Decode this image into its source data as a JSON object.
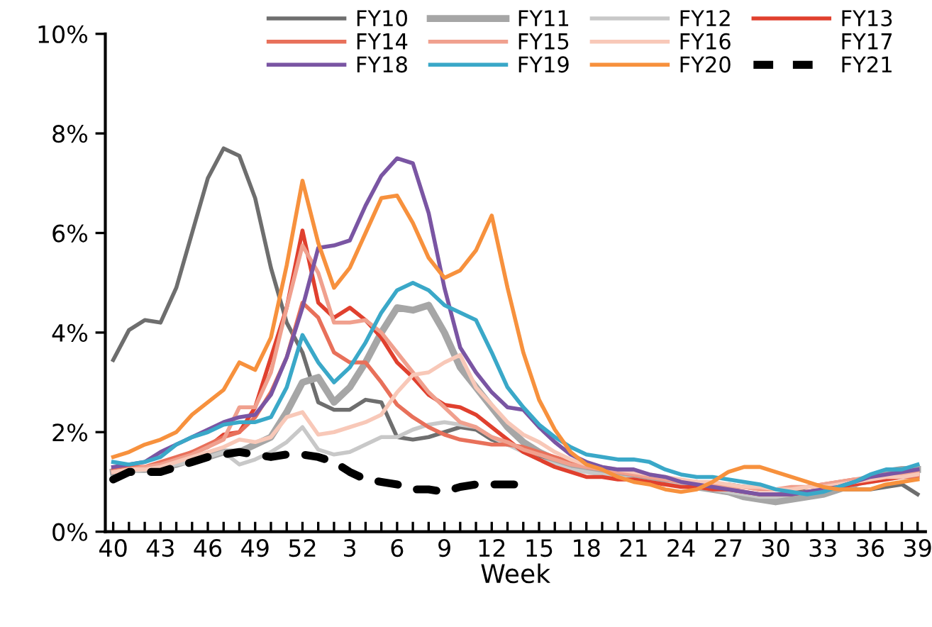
{
  "chart_data": {
    "type": "line",
    "xlabel": "Week",
    "categories": [
      "40",
      null,
      null,
      "43",
      null,
      null,
      "46",
      null,
      null,
      "49",
      null,
      null,
      "52",
      null,
      null,
      "3",
      null,
      null,
      "6",
      null,
      null,
      "9",
      null,
      null,
      "12",
      null,
      null,
      "15",
      null,
      null,
      "18",
      null,
      null,
      "21",
      null,
      null,
      "24",
      null,
      null,
      "27",
      null,
      null,
      "30",
      null,
      null,
      "33",
      null,
      null,
      "36",
      null,
      null,
      "39"
    ],
    "ylim": [
      0,
      10
    ],
    "yticks": [
      {
        "value": 0,
        "label": "0%"
      },
      {
        "value": 2,
        "label": "2%"
      },
      {
        "value": 4,
        "label": "4%"
      },
      {
        "value": 6,
        "label": "6%"
      },
      {
        "value": 8,
        "label": "8%"
      },
      {
        "value": 10,
        "label": "10%"
      }
    ],
    "grid": false,
    "legend": "top",
    "marker": "none",
    "series": [
      {
        "name": "FY10",
        "color": "#6e6e6e",
        "values": [
          3.45,
          4.05,
          4.25,
          4.2,
          4.9,
          6.0,
          7.1,
          7.7,
          7.55,
          6.7,
          5.3,
          4.2,
          3.6,
          2.6,
          2.45,
          2.45,
          2.65,
          2.6,
          1.9,
          1.85,
          1.9,
          2.0,
          2.1,
          2.05,
          1.85,
          1.75,
          1.65,
          1.5,
          1.4,
          1.3,
          1.25,
          1.2,
          1.1,
          1.1,
          1.05,
          1.0,
          1.0,
          0.95,
          0.95,
          0.95,
          0.9,
          0.9,
          0.85,
          0.85,
          0.8,
          0.8,
          0.85,
          0.85,
          0.85,
          0.9,
          0.95,
          0.75
        ]
      },
      {
        "name": "FY11",
        "color": "#a6a6a6",
        "line_style": "solid",
        "values": [
          1.2,
          1.25,
          1.25,
          1.3,
          1.35,
          1.45,
          1.5,
          1.6,
          1.6,
          1.75,
          1.9,
          2.4,
          3.0,
          3.1,
          2.6,
          2.9,
          3.4,
          4.0,
          4.5,
          4.45,
          4.55,
          4.0,
          3.3,
          2.9,
          2.5,
          2.1,
          1.8,
          1.6,
          1.45,
          1.35,
          1.3,
          1.2,
          1.15,
          1.1,
          1.05,
          1.0,
          0.95,
          0.9,
          0.85,
          0.8,
          0.7,
          0.65,
          0.6,
          0.65,
          0.7,
          0.75,
          0.85,
          0.95,
          1.1,
          1.2,
          1.25,
          1.25
        ]
      },
      {
        "name": "FY12",
        "color": "#c8c8c8",
        "values": [
          1.2,
          1.2,
          1.25,
          1.3,
          1.35,
          1.4,
          1.5,
          1.6,
          1.35,
          1.45,
          1.6,
          1.8,
          2.1,
          1.65,
          1.55,
          1.6,
          1.75,
          1.9,
          1.9,
          2.05,
          2.15,
          2.2,
          2.15,
          2.1,
          1.9,
          1.75,
          1.6,
          1.45,
          1.35,
          1.25,
          1.2,
          1.15,
          1.1,
          1.05,
          1.0,
          0.95,
          0.95,
          0.9,
          0.85,
          0.8,
          0.75,
          0.7,
          0.7,
          0.75,
          0.8,
          0.85,
          0.9,
          0.95,
          1.0,
          1.05,
          1.1,
          1.1
        ]
      },
      {
        "name": "FY13",
        "color": "#e0402e",
        "values": [
          1.2,
          1.25,
          1.3,
          1.35,
          1.45,
          1.6,
          1.7,
          1.95,
          2.0,
          2.5,
          3.5,
          4.5,
          6.05,
          4.6,
          4.3,
          4.5,
          4.25,
          3.9,
          3.4,
          3.1,
          2.75,
          2.55,
          2.5,
          2.35,
          2.1,
          1.85,
          1.6,
          1.45,
          1.3,
          1.2,
          1.1,
          1.1,
          1.05,
          1.05,
          1.0,
          0.95,
          0.9,
          0.9,
          0.85,
          0.85,
          0.8,
          0.75,
          0.75,
          0.75,
          0.8,
          0.85,
          0.9,
          0.95,
          1.0,
          1.05,
          1.1,
          1.15
        ]
      },
      {
        "name": "FY14",
        "color": "#e8705a",
        "values": [
          1.25,
          1.3,
          1.3,
          1.4,
          1.5,
          1.6,
          1.75,
          1.9,
          2.0,
          2.3,
          2.8,
          3.5,
          4.6,
          4.3,
          3.6,
          3.4,
          3.4,
          3.0,
          2.55,
          2.3,
          2.1,
          1.95,
          1.85,
          1.8,
          1.75,
          1.75,
          1.7,
          1.6,
          1.5,
          1.4,
          1.3,
          1.25,
          1.2,
          1.15,
          1.1,
          1.05,
          1.0,
          1.0,
          0.95,
          0.9,
          0.9,
          0.85,
          0.85,
          0.85,
          0.9,
          0.95,
          1.0,
          1.05,
          1.05,
          1.1,
          1.1,
          1.1
        ]
      },
      {
        "name": "FY15",
        "color": "#f0a08e",
        "values": [
          1.2,
          1.25,
          1.3,
          1.35,
          1.45,
          1.55,
          1.7,
          1.85,
          2.5,
          2.5,
          3.2,
          4.5,
          5.75,
          5.2,
          4.2,
          4.2,
          4.25,
          4.0,
          3.6,
          3.2,
          2.8,
          2.5,
          2.2,
          2.1,
          1.9,
          1.8,
          1.65,
          1.55,
          1.45,
          1.35,
          1.3,
          1.25,
          1.2,
          1.15,
          1.1,
          1.05,
          1.0,
          1.0,
          0.95,
          0.9,
          0.9,
          0.85,
          0.85,
          0.9,
          0.9,
          0.95,
          1.0,
          1.05,
          1.1,
          1.15,
          1.15,
          1.2
        ]
      },
      {
        "name": "FY16",
        "color": "#f8c8b8",
        "values": [
          1.2,
          1.25,
          1.25,
          1.3,
          1.4,
          1.5,
          1.6,
          1.7,
          1.85,
          1.8,
          1.9,
          2.3,
          2.4,
          1.95,
          2.0,
          2.1,
          2.2,
          2.35,
          2.8,
          3.15,
          3.2,
          3.4,
          3.55,
          2.9,
          2.55,
          2.2,
          1.95,
          1.8,
          1.6,
          1.45,
          1.35,
          1.3,
          1.25,
          1.2,
          1.15,
          1.1,
          1.05,
          1.0,
          1.0,
          0.95,
          0.9,
          0.9,
          0.85,
          0.85,
          0.9,
          0.9,
          0.95,
          1.0,
          1.05,
          1.1,
          1.1,
          1.15
        ]
      },
      {
        "name": "FY17",
        "values": [
          null,
          null,
          null,
          null,
          null,
          null,
          null,
          null,
          null,
          null,
          null,
          null,
          null,
          null,
          null,
          null,
          null,
          null,
          null,
          null,
          null,
          null,
          null,
          null,
          null,
          null,
          null,
          null,
          null,
          null,
          null,
          null,
          null,
          null,
          null,
          null,
          null,
          null,
          null,
          null,
          null,
          null,
          null,
          null,
          null,
          null,
          null,
          null,
          null,
          null,
          null,
          null
        ]
      },
      {
        "name": "FY18",
        "color": "#7a55a3",
        "values": [
          1.3,
          1.35,
          1.4,
          1.6,
          1.75,
          1.9,
          2.05,
          2.2,
          2.3,
          2.35,
          2.75,
          3.5,
          4.5,
          5.7,
          5.75,
          5.85,
          6.55,
          7.15,
          7.5,
          7.4,
          6.4,
          4.9,
          3.7,
          3.2,
          2.8,
          2.5,
          2.45,
          2.1,
          1.8,
          1.55,
          1.4,
          1.3,
          1.25,
          1.25,
          1.15,
          1.1,
          1.0,
          0.95,
          0.9,
          0.85,
          0.8,
          0.75,
          0.75,
          0.75,
          0.8,
          0.85,
          0.9,
          1.0,
          1.1,
          1.15,
          1.2,
          1.25
        ]
      },
      {
        "name": "FY19",
        "color": "#3aa8c8",
        "values": [
          1.4,
          1.35,
          1.4,
          1.5,
          1.75,
          1.9,
          2.0,
          2.15,
          2.2,
          2.2,
          2.3,
          2.9,
          3.95,
          3.4,
          3.0,
          3.3,
          3.8,
          4.4,
          4.85,
          5.0,
          4.85,
          4.55,
          4.4,
          4.25,
          3.6,
          2.9,
          2.5,
          2.15,
          1.9,
          1.7,
          1.55,
          1.5,
          1.45,
          1.45,
          1.4,
          1.25,
          1.15,
          1.1,
          1.1,
          1.05,
          1.0,
          0.95,
          0.85,
          0.8,
          0.75,
          0.8,
          0.9,
          1.0,
          1.15,
          1.25,
          1.25,
          1.35
        ]
      },
      {
        "name": "FY20",
        "color": "#f7913d",
        "values": [
          1.5,
          1.6,
          1.75,
          1.85,
          2.0,
          2.35,
          2.6,
          2.85,
          3.4,
          3.25,
          3.9,
          5.35,
          7.05,
          5.8,
          4.9,
          5.3,
          6.0,
          6.7,
          6.75,
          6.2,
          5.5,
          5.1,
          5.25,
          5.65,
          6.35,
          4.9,
          3.6,
          2.65,
          2.05,
          1.6,
          1.35,
          1.25,
          1.1,
          1.0,
          0.95,
          0.85,
          0.8,
          0.85,
          1.0,
          1.2,
          1.3,
          1.3,
          1.2,
          1.1,
          1.0,
          0.9,
          0.85,
          0.85,
          0.85,
          0.95,
          1.0,
          1.05
        ]
      },
      {
        "name": "FY21",
        "color": "#000000",
        "line_style": "dashed",
        "values": [
          1.05,
          1.2,
          1.2,
          1.2,
          1.3,
          1.4,
          1.5,
          1.55,
          1.6,
          1.55,
          1.5,
          1.55,
          1.55,
          1.5,
          1.4,
          1.2,
          1.05,
          1.0,
          0.95,
          0.85,
          0.85,
          0.8,
          0.9,
          0.95,
          0.95,
          0.95,
          0.95,
          null,
          null,
          null,
          null,
          null,
          null,
          null,
          null,
          null,
          null,
          null,
          null,
          null,
          null,
          null,
          null,
          null,
          null,
          null,
          null,
          null,
          null,
          null,
          null,
          null
        ]
      }
    ]
  }
}
